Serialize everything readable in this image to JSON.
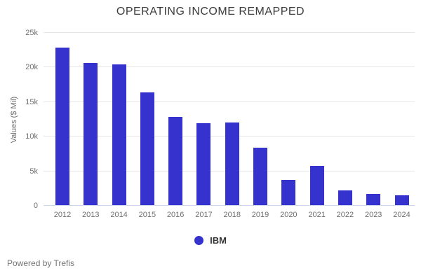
{
  "title": "OPERATING INCOME REMAPPED",
  "legend": {
    "label": "IBM"
  },
  "footer": {
    "text": "Powered by Trefis"
  },
  "colors": {
    "bar": "#3532cd",
    "gridline": "#e6e6e6",
    "baseline": "#ccd6ee",
    "title_text": "#3d3d3d",
    "axis_text": "#6f6f6f",
    "legend_text": "#333333",
    "footer_text": "#757575"
  },
  "chart_data": {
    "type": "bar",
    "title": "OPERATING INCOME REMAPPED",
    "categories": [
      "2012",
      "2013",
      "2014",
      "2015",
      "2016",
      "2017",
      "2018",
      "2019",
      "2020",
      "2021",
      "2022",
      "2023",
      "2024"
    ],
    "series": [
      {
        "name": "IBM",
        "values": [
          22900,
          20600,
          20450,
          16350,
          12900,
          11900,
          12000,
          8450,
          3700,
          5750,
          2250,
          1750,
          1550
        ]
      }
    ],
    "xlabel": "",
    "ylabel": "Values ($ Mil)",
    "ylim": [
      0,
      25000
    ],
    "yticks": [
      0,
      5000,
      10000,
      15000,
      20000,
      25000
    ],
    "ytick_labels": [
      "0",
      "5k",
      "10k",
      "15k",
      "20k",
      "25k"
    ],
    "grid": true,
    "legend_position": "bottom"
  }
}
